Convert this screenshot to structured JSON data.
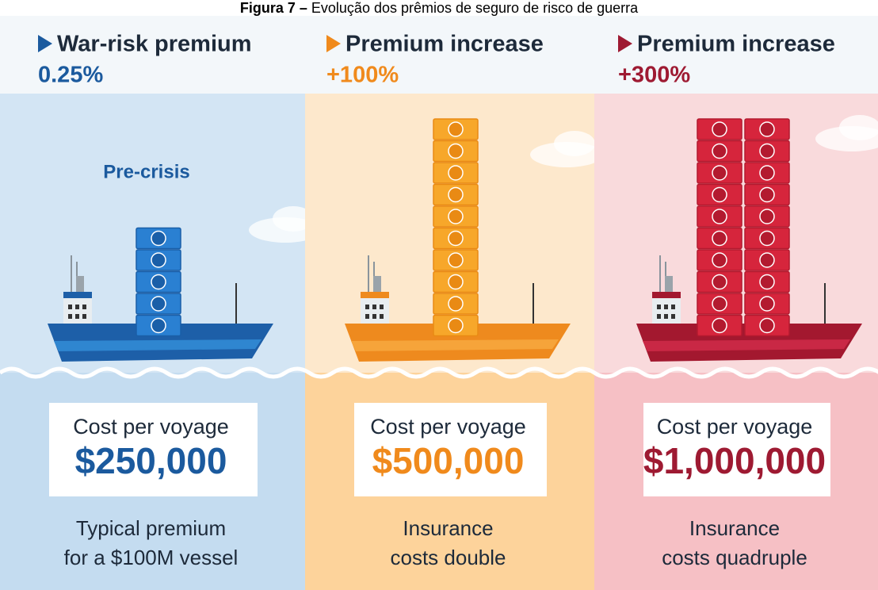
{
  "caption": {
    "label": "Figura 7 –",
    "text": "Evolução dos prêmios de seguro de risco de guerra"
  },
  "panels": [
    {
      "heading": "War-risk premium",
      "rate": "0.25%",
      "badge": "Pre-crisis",
      "cost_label": "Cost per voyage",
      "cost": "$250,000",
      "note": [
        "Typical premium",
        "for a $100M vessel"
      ]
    },
    {
      "heading": "Premium increase",
      "rate": "+100%",
      "cost_label": "Cost per voyage",
      "cost": "$500,000",
      "note": [
        "Insurance",
        "costs double"
      ]
    },
    {
      "heading": "Premium increase",
      "rate": "+300%",
      "cost_label": "Cost per voyage",
      "cost": "$1,000,000",
      "note": [
        "Insurance",
        "costs quadruple"
      ]
    }
  ]
}
